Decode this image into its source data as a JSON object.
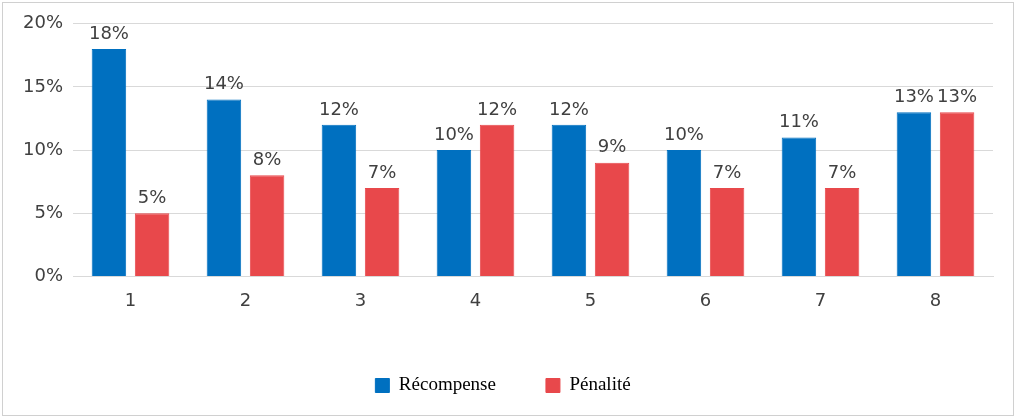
{
  "chart_data": {
    "type": "bar",
    "categories": [
      "1",
      "2",
      "3",
      "4",
      "5",
      "6",
      "7",
      "8"
    ],
    "series": [
      {
        "name": "Récompense",
        "color": "#0070c0",
        "values": [
          18,
          14,
          12,
          10,
          12,
          10,
          11,
          13
        ],
        "value_labels": [
          "18%",
          "14%",
          "12%",
          "10%",
          "12%",
          "10%",
          "11%",
          "13%"
        ]
      },
      {
        "name": "Pénalité",
        "color": "#e8484b",
        "values": [
          5,
          8,
          7,
          12,
          9,
          7,
          7,
          13
        ],
        "value_labels": [
          "5%",
          "8%",
          "7%",
          "12%",
          "9%",
          "7%",
          "7%",
          "13%"
        ]
      }
    ],
    "ylim": [
      0,
      20
    ],
    "yticks": [
      {
        "value": 0,
        "label": "0%"
      },
      {
        "value": 5,
        "label": "5%"
      },
      {
        "value": 10,
        "label": "10%"
      },
      {
        "value": 15,
        "label": "15%"
      },
      {
        "value": 20,
        "label": "20%"
      }
    ],
    "grid": "y",
    "legend": "bottom"
  }
}
